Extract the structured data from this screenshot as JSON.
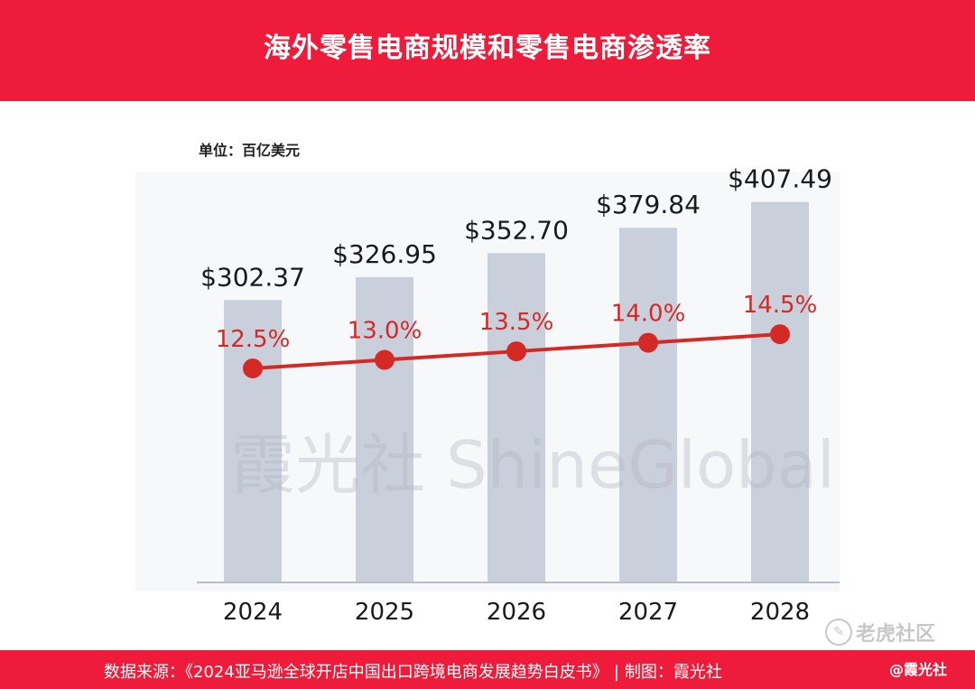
{
  "header": {
    "title": "海外零售电商规模和零售电商渗透率"
  },
  "unit_label": "单位：百亿美元",
  "chart_data": {
    "type": "bar",
    "title": "海外零售电商规模和零售电商渗透率",
    "unit": "单位：百亿美元",
    "categories": [
      "2024",
      "2025",
      "2026",
      "2027",
      "2028"
    ],
    "series": [
      {
        "name": "零售电商规模",
        "type": "bar",
        "values": [
          302.37,
          326.95,
          352.7,
          379.84,
          407.49
        ],
        "labels": [
          "$302.37",
          "$326.95",
          "$352.70",
          "$379.84",
          "$407.49"
        ]
      },
      {
        "name": "零售电商渗透率",
        "type": "line",
        "values": [
          12.5,
          13.0,
          13.5,
          14.0,
          14.5
        ],
        "labels": [
          "12.5%",
          "13.0%",
          "13.5%",
          "14.0%",
          "14.5%"
        ]
      }
    ],
    "bar_ylim": [
      0,
      440
    ],
    "line_ylim": [
      0,
      24
    ],
    "colors": {
      "bar": "#c9d0dc",
      "line": "#d42a26",
      "axis": "#b8bec9"
    }
  },
  "watermark": {
    "text": "霞光社 ShineGlobal"
  },
  "footer": {
    "source": "数据来源：《2024亚马逊全球开店中国出口跨境电商发展趋势白皮书》",
    "separator": "|",
    "credit": "制图：霞光社"
  },
  "stickers": {
    "community": "老虎社区",
    "handle": "@霞光社"
  }
}
